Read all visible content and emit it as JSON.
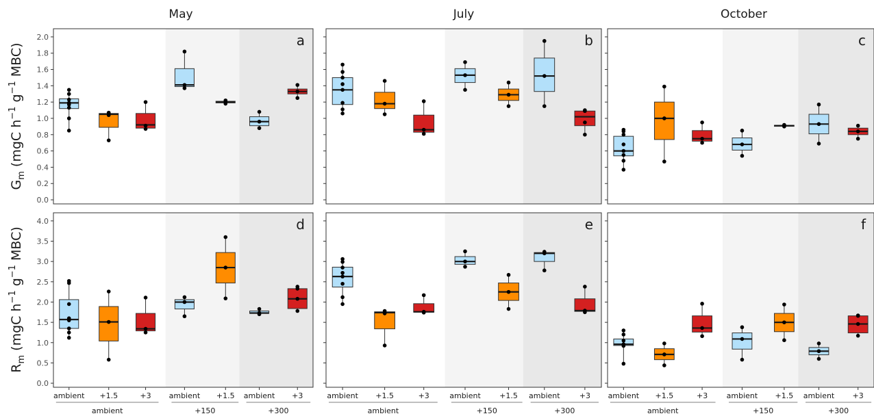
{
  "figure": {
    "columns": [
      "May",
      "July",
      "October"
    ],
    "y_label_top": {
      "main": "G",
      "sub": "m",
      "rest": " (mgC h",
      "sup1": "−1",
      "mid": " g",
      "sup2": "−1",
      "end": " MBC)"
    },
    "y_label_bottom": {
      "main": "R",
      "sub": "m",
      "rest": " (mgC h",
      "sup1": "−1",
      "mid": " g",
      "sup2": "−1",
      "end": " MBC)"
    },
    "categories": [
      "ambient",
      "+1.5",
      "+3",
      "ambient",
      "+1.5",
      "ambient",
      "+3"
    ],
    "groups": [
      {
        "label": "ambient",
        "from": 0,
        "to": 2
      },
      {
        "label": "+150",
        "from": 3,
        "to": 4
      },
      {
        "label": "+300",
        "from": 5,
        "to": 6
      }
    ],
    "colors": {
      "ambient": "#b3e0fa",
      "+1.5": "#ff8c00",
      "+3": "#d42020",
      "bg150": "#f4f4f4",
      "bg300": "#e8e8e8"
    }
  },
  "chart_data": [
    {
      "type": "box",
      "panel": "a",
      "column": "May",
      "row": "Gm",
      "ylim": [
        -0.05,
        2.1
      ],
      "yticks": [
        0.0,
        0.2,
        0.4,
        0.6,
        0.8,
        1.0,
        1.2,
        1.4,
        1.6,
        1.8,
        2.0
      ],
      "boxes": [
        {
          "category": "ambient",
          "min": 0.85,
          "q1": 1.12,
          "median": 1.19,
          "q3": 1.24,
          "max": 1.35,
          "points": [
            0.85,
            1.0,
            1.13,
            1.17,
            1.19,
            1.23,
            1.3,
            1.35
          ]
        },
        {
          "category": "+1.5",
          "min": 0.73,
          "q1": 0.89,
          "median": 1.05,
          "q3": 1.06,
          "max": 1.07,
          "points": [
            0.73,
            1.04,
            1.06,
            1.07
          ]
        },
        {
          "category": "+3",
          "min": 0.87,
          "q1": 0.88,
          "median": 0.92,
          "q3": 1.06,
          "max": 1.2,
          "points": [
            0.87,
            0.91,
            1.2
          ]
        },
        {
          "category": "ambient",
          "min": 1.37,
          "q1": 1.39,
          "median": 1.41,
          "q3": 1.61,
          "max": 1.82,
          "points": [
            1.37,
            1.41,
            1.82
          ]
        },
        {
          "category": "+1.5",
          "min": 1.18,
          "q1": 1.19,
          "median": 1.2,
          "q3": 1.21,
          "max": 1.22,
          "points": [
            1.18,
            1.2,
            1.22
          ]
        },
        {
          "category": "ambient",
          "min": 0.88,
          "q1": 0.91,
          "median": 0.96,
          "q3": 1.02,
          "max": 1.08,
          "points": [
            0.88,
            0.96,
            1.08
          ]
        },
        {
          "category": "+3",
          "min": 1.25,
          "q1": 1.3,
          "median": 1.33,
          "q3": 1.36,
          "max": 1.41,
          "points": [
            1.25,
            1.33,
            1.41
          ]
        }
      ]
    },
    {
      "type": "box",
      "panel": "b",
      "column": "July",
      "row": "Gm",
      "ylim": [
        -0.05,
        2.1
      ],
      "yticks": [
        0.0,
        0.2,
        0.4,
        0.6,
        0.8,
        1.0,
        1.2,
        1.4,
        1.6,
        1.8,
        2.0
      ],
      "boxes": [
        {
          "category": "ambient",
          "min": 1.06,
          "q1": 1.17,
          "median": 1.35,
          "q3": 1.5,
          "max": 1.66,
          "points": [
            1.06,
            1.11,
            1.19,
            1.35,
            1.42,
            1.5,
            1.57,
            1.66
          ]
        },
        {
          "category": "+1.5",
          "min": 1.05,
          "q1": 1.12,
          "median": 1.18,
          "q3": 1.32,
          "max": 1.46,
          "points": [
            1.05,
            1.18,
            1.46
          ]
        },
        {
          "category": "+3",
          "min": 0.81,
          "q1": 0.83,
          "median": 0.86,
          "q3": 1.04,
          "max": 1.21,
          "points": [
            0.81,
            0.86,
            1.21
          ]
        },
        {
          "category": "ambient",
          "min": 1.35,
          "q1": 1.44,
          "median": 1.53,
          "q3": 1.61,
          "max": 1.69,
          "points": [
            1.35,
            1.53,
            1.69
          ]
        },
        {
          "category": "+1.5",
          "min": 1.15,
          "q1": 1.22,
          "median": 1.29,
          "q3": 1.36,
          "max": 1.44,
          "points": [
            1.15,
            1.29,
            1.44
          ]
        },
        {
          "category": "ambient",
          "min": 1.15,
          "q1": 1.33,
          "median": 1.52,
          "q3": 1.74,
          "max": 1.95,
          "points": [
            1.15,
            1.52,
            1.95
          ]
        },
        {
          "category": "+3",
          "min": 0.8,
          "q1": 0.91,
          "median": 1.02,
          "q3": 1.09,
          "max": 1.1,
          "points": [
            0.8,
            0.95,
            1.09,
            1.1
          ]
        }
      ]
    },
    {
      "type": "box",
      "panel": "c",
      "column": "October",
      "row": "Gm",
      "ylim": [
        -0.05,
        2.1
      ],
      "yticks": [
        0.0,
        0.2,
        0.4,
        0.6,
        0.8,
        1.0,
        1.2,
        1.4,
        1.6,
        1.8,
        2.0
      ],
      "boxes": [
        {
          "category": "ambient",
          "min": 0.37,
          "q1": 0.54,
          "median": 0.6,
          "q3": 0.78,
          "max": 0.86,
          "points": [
            0.37,
            0.48,
            0.55,
            0.6,
            0.68,
            0.8,
            0.84,
            0.86
          ]
        },
        {
          "category": "+1.5",
          "min": 0.47,
          "q1": 0.74,
          "median": 1.0,
          "q3": 1.2,
          "max": 1.39,
          "points": [
            0.47,
            1.0,
            1.39
          ]
        },
        {
          "category": "+3",
          "min": 0.7,
          "q1": 0.72,
          "median": 0.75,
          "q3": 0.85,
          "max": 0.95,
          "points": [
            0.7,
            0.75,
            0.95
          ]
        },
        {
          "category": "ambient",
          "min": 0.54,
          "q1": 0.61,
          "median": 0.68,
          "q3": 0.76,
          "max": 0.85,
          "points": [
            0.54,
            0.68,
            0.85
          ]
        },
        {
          "category": "+1.5",
          "min": 0.9,
          "q1": 0.905,
          "median": 0.91,
          "q3": 0.915,
          "max": 0.92,
          "points": [
            0.9,
            0.91,
            0.92
          ]
        },
        {
          "category": "ambient",
          "min": 0.69,
          "q1": 0.81,
          "median": 0.93,
          "q3": 1.05,
          "max": 1.17,
          "points": [
            0.69,
            0.93,
            1.17
          ]
        },
        {
          "category": "+3",
          "min": 0.75,
          "q1": 0.8,
          "median": 0.84,
          "q3": 0.88,
          "max": 0.91,
          "points": [
            0.75,
            0.84,
            0.91
          ]
        }
      ]
    },
    {
      "type": "box",
      "panel": "d",
      "column": "May",
      "row": "Rm",
      "ylim": [
        -0.1,
        4.2
      ],
      "yticks": [
        0.0,
        0.5,
        1.0,
        1.5,
        2.0,
        2.5,
        3.0,
        3.5,
        4.0
      ],
      "boxes": [
        {
          "category": "ambient",
          "min": 1.12,
          "q1": 1.35,
          "median": 1.57,
          "q3": 2.06,
          "max": 2.52,
          "points": [
            1.12,
            1.25,
            1.35,
            1.55,
            1.6,
            1.95,
            2.47,
            2.52
          ]
        },
        {
          "category": "+1.5",
          "min": 0.58,
          "q1": 1.04,
          "median": 1.51,
          "q3": 1.89,
          "max": 2.26,
          "points": [
            0.58,
            1.51,
            2.26
          ]
        },
        {
          "category": "+3",
          "min": 1.25,
          "q1": 1.29,
          "median": 1.34,
          "q3": 1.72,
          "max": 2.11,
          "points": [
            1.25,
            1.34,
            2.11
          ]
        },
        {
          "category": "ambient",
          "min": 1.65,
          "q1": 1.83,
          "median": 2.0,
          "q3": 2.06,
          "max": 2.12,
          "points": [
            1.65,
            2.0,
            2.12
          ]
        },
        {
          "category": "+1.5",
          "min": 2.09,
          "q1": 2.47,
          "median": 2.85,
          "q3": 3.22,
          "max": 3.6,
          "points": [
            2.09,
            2.85,
            3.6
          ]
        },
        {
          "category": "ambient",
          "min": 1.7,
          "q1": 1.72,
          "median": 1.73,
          "q3": 1.78,
          "max": 1.83,
          "points": [
            1.7,
            1.73,
            1.83
          ]
        },
        {
          "category": "+3",
          "min": 1.78,
          "q1": 1.84,
          "median": 2.08,
          "q3": 2.33,
          "max": 2.38,
          "points": [
            1.78,
            2.08,
            2.33,
            2.38
          ]
        }
      ]
    },
    {
      "type": "box",
      "panel": "e",
      "column": "July",
      "row": "Rm",
      "ylim": [
        -0.1,
        4.2
      ],
      "yticks": [
        0.0,
        0.5,
        1.0,
        1.5,
        2.0,
        2.5,
        3.0,
        3.5,
        4.0
      ],
      "boxes": [
        {
          "category": "ambient",
          "min": 1.95,
          "q1": 2.37,
          "median": 2.63,
          "q3": 2.86,
          "max": 3.06,
          "points": [
            1.95,
            2.12,
            2.45,
            2.63,
            2.72,
            2.85,
            2.99,
            3.06
          ]
        },
        {
          "category": "+1.5",
          "min": 0.93,
          "q1": 1.34,
          "median": 1.74,
          "q3": 1.76,
          "max": 1.78,
          "points": [
            0.93,
            1.72,
            1.74,
            1.78
          ]
        },
        {
          "category": "+3",
          "min": 1.74,
          "q1": 1.75,
          "median": 1.76,
          "q3": 1.96,
          "max": 2.17,
          "points": [
            1.74,
            1.76,
            2.17
          ]
        },
        {
          "category": "ambient",
          "min": 2.87,
          "q1": 2.93,
          "median": 3.0,
          "q3": 3.12,
          "max": 3.25,
          "points": [
            2.87,
            3.0,
            3.25
          ]
        },
        {
          "category": "+1.5",
          "min": 1.83,
          "q1": 2.04,
          "median": 2.25,
          "q3": 2.47,
          "max": 2.67,
          "points": [
            1.83,
            2.25,
            2.67
          ]
        },
        {
          "category": "ambient",
          "min": 2.78,
          "q1": 3.0,
          "median": 3.2,
          "q3": 3.22,
          "max": 3.24,
          "points": [
            2.78,
            3.2,
            3.24
          ]
        },
        {
          "category": "+3",
          "min": 1.75,
          "q1": 1.77,
          "median": 1.79,
          "q3": 2.08,
          "max": 2.38,
          "points": [
            1.75,
            1.79,
            2.38
          ]
        }
      ]
    },
    {
      "type": "box",
      "panel": "f",
      "column": "October",
      "row": "Rm",
      "ylim": [
        -0.1,
        4.2
      ],
      "yticks": [
        0.0,
        0.5,
        1.0,
        1.5,
        2.0,
        2.5,
        3.0,
        3.5,
        4.0
      ],
      "boxes": [
        {
          "category": "ambient",
          "min": 0.48,
          "q1": 0.93,
          "median": 0.96,
          "q3": 1.09,
          "max": 1.3,
          "points": [
            0.48,
            0.92,
            0.96,
            1.05,
            1.2,
            1.3
          ]
        },
        {
          "category": "+1.5",
          "min": 0.44,
          "q1": 0.58,
          "median": 0.71,
          "q3": 0.85,
          "max": 0.98,
          "points": [
            0.44,
            0.71,
            0.98
          ]
        },
        {
          "category": "+3",
          "min": 1.16,
          "q1": 1.26,
          "median": 1.36,
          "q3": 1.66,
          "max": 1.96,
          "points": [
            1.16,
            1.36,
            1.96
          ]
        },
        {
          "category": "ambient",
          "min": 0.58,
          "q1": 0.84,
          "median": 1.09,
          "q3": 1.24,
          "max": 1.38,
          "points": [
            0.58,
            1.09,
            1.38
          ]
        },
        {
          "category": "+1.5",
          "min": 1.06,
          "q1": 1.27,
          "median": 1.5,
          "q3": 1.72,
          "max": 1.94,
          "points": [
            1.06,
            1.5,
            1.94
          ]
        },
        {
          "category": "ambient",
          "min": 0.6,
          "q1": 0.7,
          "median": 0.79,
          "q3": 0.88,
          "max": 0.98,
          "points": [
            0.6,
            0.79,
            0.98
          ]
        },
        {
          "category": "+3",
          "min": 1.17,
          "q1": 1.24,
          "median": 1.46,
          "q3": 1.66,
          "max": 1.67,
          "points": [
            1.17,
            1.46,
            1.66,
            1.67
          ]
        }
      ]
    }
  ]
}
